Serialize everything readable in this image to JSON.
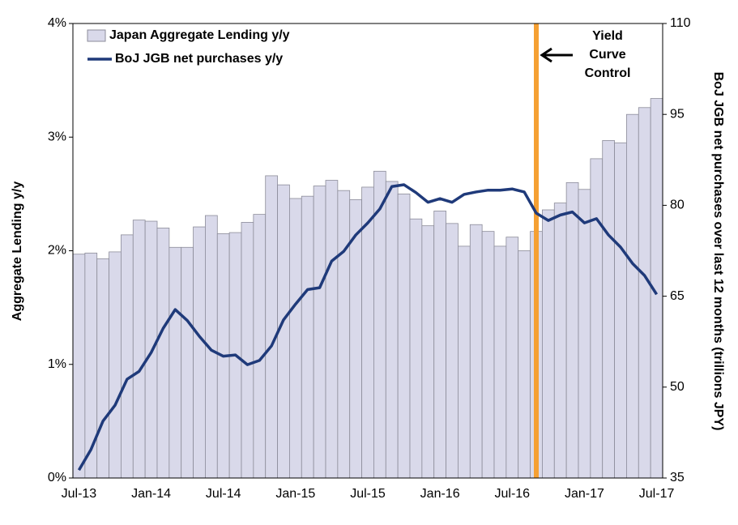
{
  "chart_data": {
    "type": "bar_line",
    "categories": [
      "Jul-13",
      null,
      null,
      null,
      null,
      null,
      "Jan-14",
      null,
      null,
      null,
      null,
      null,
      "Jul-14",
      null,
      null,
      null,
      null,
      null,
      "Jan-15",
      null,
      null,
      null,
      null,
      null,
      "Jul-15",
      null,
      null,
      null,
      null,
      null,
      "Jan-16",
      null,
      null,
      null,
      null,
      null,
      "Jul-16",
      null,
      null,
      null,
      null,
      null,
      "Jan-17",
      null,
      null,
      null,
      null,
      null,
      "Jul-17"
    ],
    "series": [
      {
        "name": "Japan Aggregate Lending y/y",
        "type": "bar",
        "color": "#d9d9ea",
        "edge_color": "#8c8c99",
        "values": [
          1.97,
          1.98,
          1.93,
          1.99,
          2.14,
          2.27,
          2.26,
          2.2,
          2.03,
          2.03,
          2.21,
          2.31,
          2.15,
          2.16,
          2.25,
          2.32,
          2.66,
          2.58,
          2.46,
          2.48,
          2.57,
          2.62,
          2.53,
          2.45,
          2.56,
          2.7,
          2.61,
          2.5,
          2.28,
          2.22,
          2.35,
          2.24,
          2.04,
          2.23,
          2.17,
          2.04,
          2.12,
          2.0,
          2.17,
          2.36,
          2.42,
          2.6,
          2.54,
          2.81,
          2.97,
          2.95,
          3.2,
          3.26,
          3.34
        ]
      },
      {
        "name": "BoJ JGB net purchases y/y",
        "type": "line",
        "axis": "y2",
        "color": "#1f3a7a",
        "values": [
          36.3,
          39.7,
          44.4,
          47,
          51.3,
          52.6,
          55.7,
          59.7,
          62.8,
          61,
          58.4,
          56.1,
          55.1,
          55.3,
          53.7,
          54.4,
          56.8,
          61.1,
          63.7,
          66.1,
          66.4,
          70.8,
          72.4,
          75.1,
          77.1,
          79.4,
          83.1,
          83.4,
          82.1,
          80.5,
          81.1,
          80.5,
          81.8,
          82.2,
          82.5,
          82.5,
          82.7,
          82.2,
          78.7,
          77.5,
          78.4,
          78.9,
          77.1,
          77.8,
          75.1,
          73.1,
          70.4,
          68.4,
          65.3
        ]
      }
    ],
    "ylabel": "Aggregate Lending y/y",
    "y2label": "BoJ JGB net purchases over last 12 months (trillions JPY)",
    "ylim": [
      0,
      4
    ],
    "yticks": [
      {
        "value": 0,
        "label": "0%"
      },
      {
        "value": 1,
        "label": "1%"
      },
      {
        "value": 2,
        "label": "2%"
      },
      {
        "value": 3,
        "label": "3%"
      },
      {
        "value": 4,
        "label": "4%"
      }
    ],
    "y2lim": [
      35,
      110
    ],
    "y2ticks": [
      35,
      50,
      65,
      80,
      95,
      110
    ],
    "annotation": {
      "lines": [
        "Yield",
        "Curve",
        "Control"
      ],
      "color": "#f5a033"
    },
    "legend": "upper left"
  }
}
